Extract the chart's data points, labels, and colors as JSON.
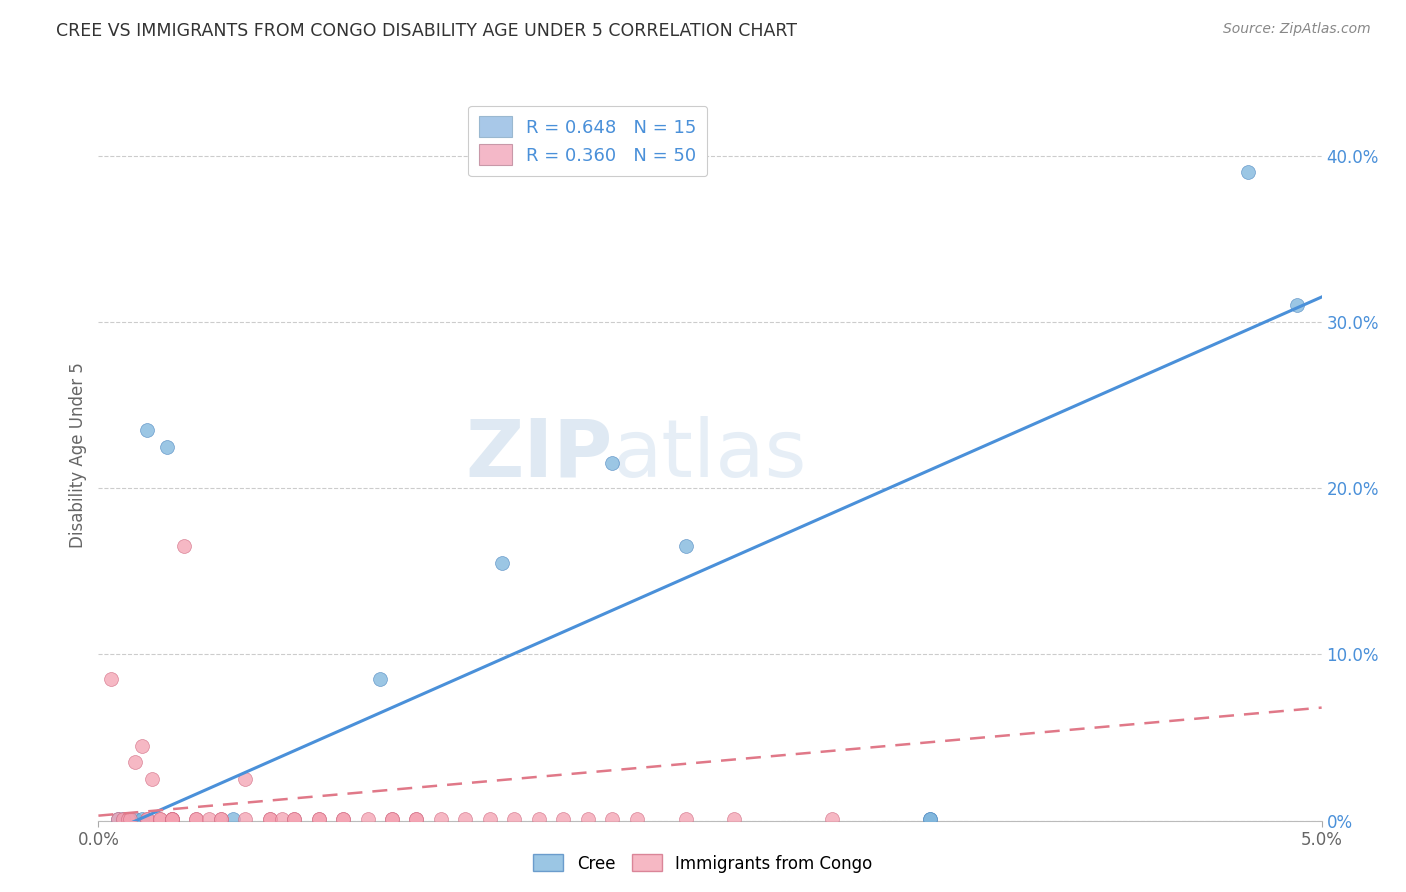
{
  "title": "CREE VS IMMIGRANTS FROM CONGO DISABILITY AGE UNDER 5 CORRELATION CHART",
  "source": "Source: ZipAtlas.com",
  "ylabel": "Disability Age Under 5",
  "watermark_zip": "ZIP",
  "watermark_atlas": "atlas",
  "legend_cree_R": "0.648",
  "legend_cree_N": "15",
  "legend_congo_R": "0.360",
  "legend_congo_N": "50",
  "right_ytick_values": [
    0.0,
    0.1,
    0.2,
    0.3,
    0.4
  ],
  "right_ytick_labels": [
    "0%",
    "10.0%",
    "20.0%",
    "30.0%",
    "40.0%"
  ],
  "x_range": [
    0.0,
    0.05
  ],
  "y_range": [
    0.0,
    0.44
  ],
  "cree_scatter_x": [
    0.0008,
    0.001,
    0.0015,
    0.0018,
    0.002,
    0.0028,
    0.0055,
    0.0115,
    0.0165,
    0.021,
    0.024,
    0.034,
    0.034,
    0.047,
    0.049
  ],
  "cree_scatter_y": [
    0.001,
    0.001,
    0.001,
    0.001,
    0.235,
    0.225,
    0.001,
    0.085,
    0.155,
    0.215,
    0.165,
    0.001,
    0.001,
    0.39,
    0.31
  ],
  "congo_scatter_x": [
    0.0005,
    0.0008,
    0.001,
    0.0012,
    0.0013,
    0.0015,
    0.0018,
    0.002,
    0.002,
    0.0022,
    0.0025,
    0.0025,
    0.003,
    0.003,
    0.003,
    0.003,
    0.0035,
    0.004,
    0.004,
    0.0045,
    0.005,
    0.005,
    0.006,
    0.006,
    0.007,
    0.007,
    0.0075,
    0.008,
    0.008,
    0.009,
    0.009,
    0.01,
    0.01,
    0.011,
    0.012,
    0.012,
    0.013,
    0.013,
    0.014,
    0.015,
    0.016,
    0.017,
    0.018,
    0.019,
    0.02,
    0.021,
    0.022,
    0.024,
    0.026,
    0.03
  ],
  "congo_scatter_y": [
    0.085,
    0.001,
    0.001,
    0.001,
    0.001,
    0.035,
    0.045,
    0.001,
    0.001,
    0.025,
    0.001,
    0.001,
    0.001,
    0.001,
    0.001,
    0.001,
    0.165,
    0.001,
    0.001,
    0.001,
    0.001,
    0.001,
    0.001,
    0.025,
    0.001,
    0.001,
    0.001,
    0.001,
    0.001,
    0.001,
    0.001,
    0.001,
    0.001,
    0.001,
    0.001,
    0.001,
    0.001,
    0.001,
    0.001,
    0.001,
    0.001,
    0.001,
    0.001,
    0.001,
    0.001,
    0.001,
    0.001,
    0.001,
    0.001,
    0.001
  ],
  "cree_line": [
    [
      0.0,
      0.05
    ],
    [
      -0.01,
      0.315
    ]
  ],
  "congo_line": [
    [
      0.0,
      0.05
    ],
    [
      0.003,
      0.068
    ]
  ],
  "cree_color": "#7ab3db",
  "cree_edge_color": "#4a85c0",
  "congo_color": "#f4a0b0",
  "congo_edge_color": "#d06880",
  "cree_line_color": "#4a90d9",
  "congo_line_color": "#e07888",
  "background_color": "#ffffff",
  "grid_color": "#cccccc",
  "legend_patch_cree": "#a8c8e8",
  "legend_patch_congo": "#f4b8c8"
}
